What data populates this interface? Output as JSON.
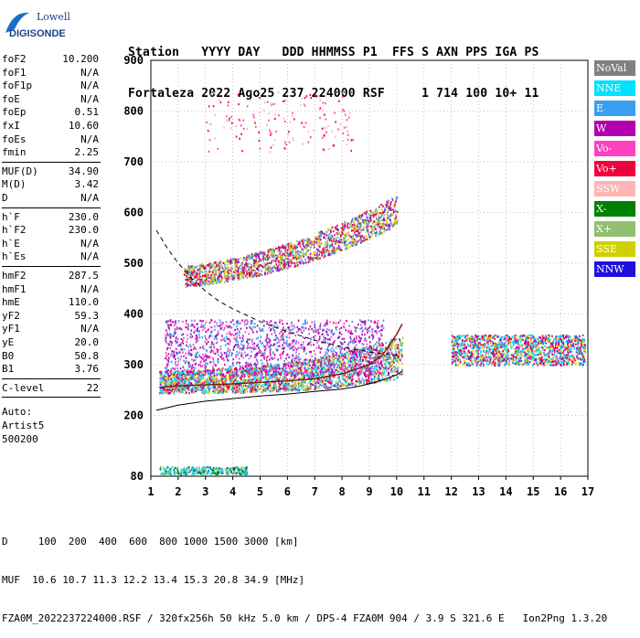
{
  "logo": {
    "line1": "Lowell",
    "line2": "DIGISONDE"
  },
  "header": {
    "row1": "Station   YYYY DAY   DDD HHMMSS P1  FFS S AXN PPS IGA PS",
    "row2": "Fortaleza 2022 Ago25 237 224000 RSF     1 714 100 10+ 11"
  },
  "params": [
    [
      {
        "label": "foF2",
        "value": "10.200"
      },
      {
        "label": "foF1",
        "value": "N/A"
      },
      {
        "label": "foF1p",
        "value": "N/A"
      },
      {
        "label": "foE",
        "value": "N/A"
      },
      {
        "label": "foEp",
        "value": "0.51"
      },
      {
        "label": "fxI",
        "value": "10.60"
      },
      {
        "label": "foEs",
        "value": "N/A"
      },
      {
        "label": "fmin",
        "value": "2.25"
      }
    ],
    [
      {
        "label": "MUF(D)",
        "value": "34.90"
      },
      {
        "label": "M(D)",
        "value": "3.42"
      },
      {
        "label": "D",
        "value": "N/A"
      }
    ],
    [
      {
        "label": "h`F",
        "value": "230.0"
      },
      {
        "label": "h`F2",
        "value": "230.0"
      },
      {
        "label": "h`E",
        "value": "N/A"
      },
      {
        "label": "h`Es",
        "value": "N/A"
      }
    ],
    [
      {
        "label": "hmF2",
        "value": "287.5"
      },
      {
        "label": "hmF1",
        "value": "N/A"
      },
      {
        "label": "hmE",
        "value": "110.0"
      },
      {
        "label": "yF2",
        "value": "59.3"
      },
      {
        "label": "yF1",
        "value": "N/A"
      },
      {
        "label": "yE",
        "value": "20.0"
      },
      {
        "label": "B0",
        "value": "50.8"
      },
      {
        "label": "B1",
        "value": "3.76"
      }
    ],
    [
      {
        "label": "C-level",
        "value": "22"
      }
    ]
  ],
  "auto": [
    "Auto:",
    "Artist5",
    "500200"
  ],
  "legend": [
    {
      "label": "NoVal",
      "color": "#808080"
    },
    {
      "label": "NNE",
      "color": "#00e0ff"
    },
    {
      "label": "E",
      "color": "#3a9ff0"
    },
    {
      "label": "W",
      "color": "#b000b0"
    },
    {
      "label": "Vo-",
      "color": "#ff40c0"
    },
    {
      "label": "Vo+",
      "color": "#f0003c"
    },
    {
      "label": "SSW",
      "color": "#ffb4b4"
    },
    {
      "label": "X-",
      "color": "#008000"
    },
    {
      "label": "X+",
      "color": "#90c070"
    },
    {
      "label": "SSE",
      "color": "#d0d000"
    },
    {
      "label": "NNW",
      "color": "#2010e0"
    }
  ],
  "footer": {
    "line1": "D     100  200  400  600  800 1000 1500 3000 [km]",
    "line2": "MUF  10.6 10.7 11.3 12.2 13.4 15.3 20.8 34.9 [MHz]",
    "line3": "FZA0M_2022237224000.RSF / 320fx256h 50 kHz 5.0 km / DPS-4 FZA0M 904 / 3.9 S 321.6 E   Ion2Png 1.3.20"
  },
  "chart_data": {
    "type": "scatter",
    "x": {
      "range": [
        1,
        17
      ],
      "ticks": [
        "1",
        "2",
        "3",
        "4",
        "5",
        "6",
        "7",
        "8",
        "9",
        "10",
        "11",
        "12",
        "13",
        "14",
        "15",
        "16",
        "17"
      ],
      "unit": "MHz"
    },
    "y": {
      "range": [
        80,
        900
      ],
      "ticks": [
        "80",
        "200",
        "300",
        "400",
        "500",
        "600",
        "700",
        "800",
        "900"
      ],
      "unit": "km"
    },
    "grid": true,
    "legend_placement": "right",
    "mufd_curve": {
      "x": [
        1.2,
        1.6,
        2.0,
        2.5,
        3.0,
        3.5,
        4.0,
        5.0,
        6.0,
        7.0,
        8.0,
        9.0,
        10.0,
        10.2
      ],
      "y": [
        565,
        530,
        500,
        470,
        445,
        425,
        410,
        385,
        365,
        348,
        335,
        325,
        318,
        316
      ]
    },
    "true_height_profile": {
      "x": [
        1.2,
        2.0,
        3.0,
        4.0,
        5.0,
        6.0,
        7.0,
        8.0,
        8.5,
        9.0,
        9.5,
        10.0,
        10.2
      ],
      "y": [
        210,
        220,
        228,
        233,
        238,
        242,
        247,
        252,
        256,
        262,
        270,
        280,
        287
      ]
    },
    "median_trace": {
      "x": [
        1.3,
        2.0,
        3.0,
        4.0,
        5.0,
        6.0,
        7.0,
        8.0,
        9.0,
        9.5,
        10.0,
        10.2
      ],
      "y": [
        255,
        258,
        260,
        262,
        265,
        268,
        272,
        282,
        300,
        320,
        360,
        380
      ]
    },
    "echo_regions": [
      {
        "name": "F-trace",
        "x": [
          1.3,
          10.2
        ],
        "y": [
          250,
          330
        ],
        "colors": [
          "Vo+",
          "E",
          "NNE",
          "W",
          "X+",
          "SSE"
        ]
      },
      {
        "name": "spread-F",
        "x": [
          1.5,
          9.5
        ],
        "y": [
          280,
          390
        ],
        "colors": [
          "W",
          "Vo-",
          "E"
        ]
      },
      {
        "name": "second-hop",
        "x": [
          2.2,
          10.0
        ],
        "y": [
          460,
          620
        ],
        "colors": [
          "W",
          "Vo+",
          "SSE",
          "X+",
          "E"
        ]
      },
      {
        "name": "multi-hop",
        "x": [
          3.0,
          8.5
        ],
        "y": [
          720,
          840
        ],
        "colors": [
          "Vo-",
          "SSW",
          "Vo+"
        ]
      },
      {
        "name": "oblique-echoes",
        "x": [
          12.0,
          16.9
        ],
        "y": [
          300,
          360
        ],
        "colors": [
          "E",
          "NNE",
          "Vo+",
          "W",
          "SSE"
        ]
      },
      {
        "name": "E-region",
        "x": [
          1.3,
          4.5
        ],
        "y": [
          85,
          100
        ],
        "colors": [
          "NNE",
          "E",
          "X-",
          "X+"
        ]
      }
    ]
  }
}
